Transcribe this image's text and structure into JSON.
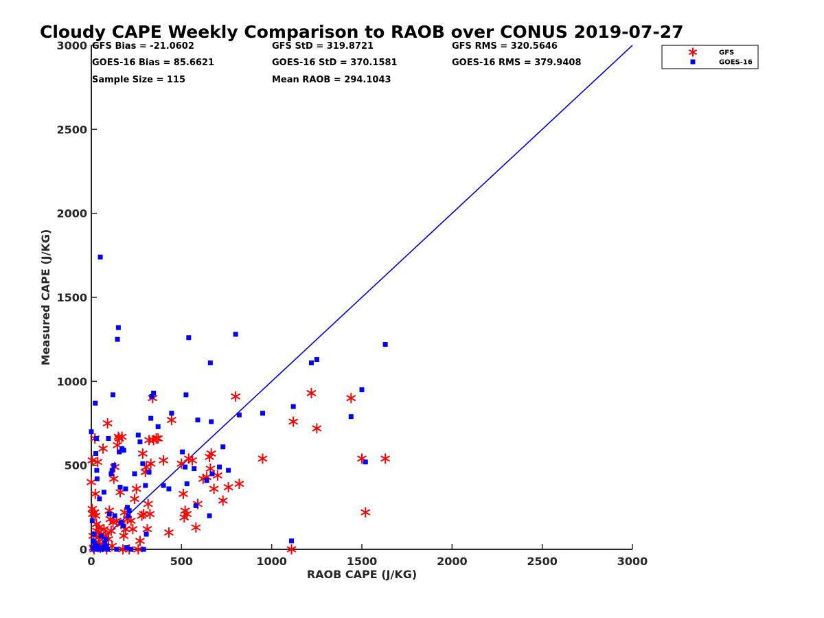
{
  "chart_data": {
    "type": "scatter",
    "title": "Cloudy CAPE Weekly Comparison to RAOB over CONUS 2019-07-27",
    "xlabel": "RAOB CAPE (J/KG)",
    "ylabel": "Measured CAPE (J/KG)",
    "xlim": [
      0,
      3000
    ],
    "ylim": [
      0,
      3000
    ],
    "xticks": [
      0,
      500,
      1000,
      1500,
      2000,
      2500,
      3000
    ],
    "yticks": [
      0,
      500,
      1000,
      1500,
      2000,
      2500,
      3000
    ],
    "grid": false,
    "legend_position": "top-right",
    "reference_line": {
      "x": [
        0,
        3000
      ],
      "y": [
        0,
        3000
      ],
      "color": "#0000e6"
    },
    "stats": [
      {
        "text": "GFS Bias = -21.0602",
        "col": 0,
        "row": 0
      },
      {
        "text": "GOES-16 Bias = 85.6621",
        "col": 0,
        "row": 1
      },
      {
        "text": "Sample Size = 115",
        "col": 0,
        "row": 2
      },
      {
        "text": "GFS StD = 319.8721",
        "col": 1,
        "row": 0
      },
      {
        "text": "GOES-16 StD = 370.1581",
        "col": 1,
        "row": 1
      },
      {
        "text": "Mean RAOB = 294.1043",
        "col": 1,
        "row": 2
      },
      {
        "text": "GFS RMS = 320.5646",
        "col": 2,
        "row": 0
      },
      {
        "text": "GOES-16 RMS = 379.9408",
        "col": 2,
        "row": 1
      }
    ],
    "series": [
      {
        "name": "GFS",
        "marker": "asterisk",
        "color": "#ff0000",
        "points": [
          [
            0,
            400
          ],
          [
            5,
            530
          ],
          [
            5,
            240
          ],
          [
            8,
            210
          ],
          [
            10,
            80
          ],
          [
            12,
            10
          ],
          [
            15,
            0
          ],
          [
            18,
            220
          ],
          [
            20,
            660
          ],
          [
            22,
            330
          ],
          [
            25,
            200
          ],
          [
            28,
            150
          ],
          [
            30,
            110
          ],
          [
            32,
            20
          ],
          [
            35,
            520
          ],
          [
            40,
            70
          ],
          [
            42,
            130
          ],
          [
            45,
            30
          ],
          [
            50,
            10
          ],
          [
            55,
            90
          ],
          [
            60,
            20
          ],
          [
            65,
            600
          ],
          [
            70,
            120
          ],
          [
            80,
            80
          ],
          [
            85,
            0
          ],
          [
            90,
            750
          ],
          [
            95,
            60
          ],
          [
            100,
            230
          ],
          [
            105,
            180
          ],
          [
            110,
            110
          ],
          [
            115,
            20
          ],
          [
            120,
            160
          ],
          [
            125,
            420
          ],
          [
            130,
            490
          ],
          [
            140,
            170
          ],
          [
            145,
            620
          ],
          [
            150,
            670
          ],
          [
            155,
            660
          ],
          [
            160,
            340
          ],
          [
            165,
            150
          ],
          [
            170,
            670
          ],
          [
            175,
            0
          ],
          [
            180,
            80
          ],
          [
            185,
            220
          ],
          [
            190,
            120
          ],
          [
            200,
            180
          ],
          [
            210,
            0
          ],
          [
            220,
            170
          ],
          [
            230,
            120
          ],
          [
            240,
            300
          ],
          [
            250,
            360
          ],
          [
            260,
            0
          ],
          [
            270,
            50
          ],
          [
            280,
            200
          ],
          [
            285,
            570
          ],
          [
            290,
            210
          ],
          [
            300,
            460
          ],
          [
            305,
            490
          ],
          [
            310,
            120
          ],
          [
            315,
            270
          ],
          [
            320,
            650
          ],
          [
            325,
            210
          ],
          [
            330,
            510
          ],
          [
            340,
            900
          ],
          [
            345,
            650
          ],
          [
            360,
            660
          ],
          [
            370,
            660
          ],
          [
            400,
            530
          ],
          [
            430,
            100
          ],
          [
            445,
            770
          ],
          [
            500,
            510
          ],
          [
            510,
            330
          ],
          [
            515,
            190
          ],
          [
            520,
            230
          ],
          [
            530,
            210
          ],
          [
            540,
            540
          ],
          [
            560,
            530
          ],
          [
            580,
            130
          ],
          [
            590,
            270
          ],
          [
            620,
            420
          ],
          [
            640,
            430
          ],
          [
            655,
            550
          ],
          [
            660,
            480
          ],
          [
            665,
            570
          ],
          [
            680,
            360
          ],
          [
            700,
            440
          ],
          [
            730,
            290
          ],
          [
            760,
            370
          ],
          [
            800,
            910
          ],
          [
            820,
            390
          ],
          [
            950,
            540
          ],
          [
            1110,
            0
          ],
          [
            1120,
            760
          ],
          [
            1220,
            930
          ],
          [
            1250,
            720
          ],
          [
            1440,
            900
          ],
          [
            1500,
            540
          ],
          [
            1520,
            220
          ],
          [
            1630,
            540
          ]
        ]
      },
      {
        "name": "GOES-16",
        "marker": "square",
        "color": "#0000ff",
        "points": [
          [
            0,
            700
          ],
          [
            5,
            170
          ],
          [
            8,
            10
          ],
          [
            10,
            50
          ],
          [
            12,
            0
          ],
          [
            15,
            90
          ],
          [
            18,
            40
          ],
          [
            20,
            0
          ],
          [
            22,
            870
          ],
          [
            25,
            570
          ],
          [
            28,
            660
          ],
          [
            30,
            470
          ],
          [
            32,
            420
          ],
          [
            35,
            20
          ],
          [
            40,
            0
          ],
          [
            45,
            300
          ],
          [
            50,
            1740
          ],
          [
            55,
            80
          ],
          [
            60,
            0
          ],
          [
            65,
            10
          ],
          [
            70,
            340
          ],
          [
            75,
            40
          ],
          [
            80,
            60
          ],
          [
            85,
            20
          ],
          [
            90,
            0
          ],
          [
            95,
            660
          ],
          [
            100,
            210
          ],
          [
            110,
            450
          ],
          [
            115,
            470
          ],
          [
            120,
            920
          ],
          [
            125,
            500
          ],
          [
            130,
            200
          ],
          [
            140,
            0
          ],
          [
            145,
            1250
          ],
          [
            150,
            1320
          ],
          [
            155,
            580
          ],
          [
            160,
            370
          ],
          [
            165,
            160
          ],
          [
            170,
            600
          ],
          [
            175,
            140
          ],
          [
            180,
            590
          ],
          [
            190,
            360
          ],
          [
            195,
            10
          ],
          [
            200,
            250
          ],
          [
            205,
            200
          ],
          [
            210,
            230
          ],
          [
            220,
            0
          ],
          [
            240,
            450
          ],
          [
            260,
            680
          ],
          [
            270,
            640
          ],
          [
            285,
            510
          ],
          [
            290,
            0
          ],
          [
            300,
            380
          ],
          [
            305,
            90
          ],
          [
            320,
            460
          ],
          [
            330,
            780
          ],
          [
            335,
            910
          ],
          [
            345,
            930
          ],
          [
            370,
            730
          ],
          [
            400,
            380
          ],
          [
            430,
            360
          ],
          [
            445,
            810
          ],
          [
            505,
            580
          ],
          [
            520,
            490
          ],
          [
            525,
            920
          ],
          [
            530,
            390
          ],
          [
            540,
            1260
          ],
          [
            570,
            480
          ],
          [
            580,
            260
          ],
          [
            590,
            770
          ],
          [
            640,
            410
          ],
          [
            655,
            200
          ],
          [
            660,
            1110
          ],
          [
            665,
            760
          ],
          [
            670,
            450
          ],
          [
            710,
            490
          ],
          [
            730,
            610
          ],
          [
            760,
            470
          ],
          [
            800,
            1280
          ],
          [
            820,
            800
          ],
          [
            950,
            810
          ],
          [
            1110,
            50
          ],
          [
            1120,
            850
          ],
          [
            1220,
            1110
          ],
          [
            1250,
            1130
          ],
          [
            1440,
            790
          ],
          [
            1500,
            950
          ],
          [
            1520,
            520
          ],
          [
            1630,
            1220
          ]
        ]
      }
    ]
  }
}
